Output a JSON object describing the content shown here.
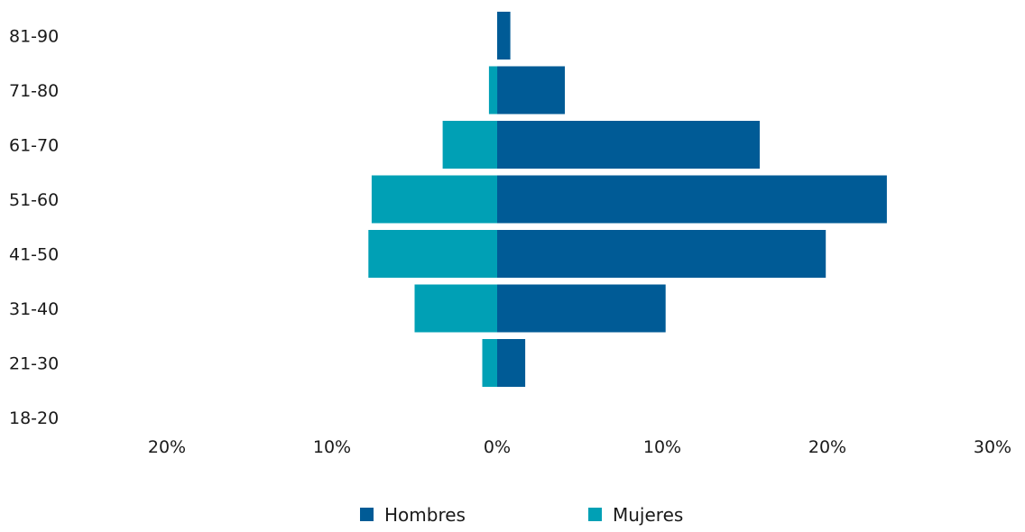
{
  "chart_data": {
    "type": "bar",
    "orientation": "horizontal",
    "layout": "population-pyramid",
    "categories": [
      "18-20",
      "21-30",
      "31-40",
      "41-50",
      "51-60",
      "61-70",
      "71-80",
      "81-90"
    ],
    "series": [
      {
        "name": "Hombres",
        "side": "right",
        "color": "#005b96",
        "values": [
          0,
          1.7,
          10.2,
          19.9,
          23.6,
          15.9,
          4.1,
          0.8
        ]
      },
      {
        "name": "Mujeres",
        "side": "left",
        "color": "#00a0b5",
        "values": [
          0,
          0.9,
          5.0,
          7.8,
          7.6,
          3.3,
          0.5,
          0
        ]
      }
    ],
    "x_ticks": [
      "20%",
      "10%",
      "0%",
      "10%",
      "20%",
      "30%"
    ],
    "x_tick_values": [
      -20,
      -10,
      0,
      10,
      20,
      30
    ],
    "xlim": [
      -20,
      30
    ],
    "xlabel": "",
    "ylabel": "",
    "title": "",
    "grid": false,
    "legend_position": "bottom-center"
  }
}
